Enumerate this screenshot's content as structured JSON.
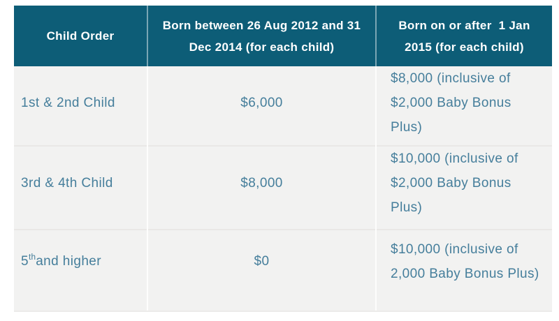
{
  "colors": {
    "header_background": "#0d5d77",
    "header_text": "#ffffff",
    "body_background": "#f2f2f1",
    "body_text": "#457e9b",
    "column_divider_body": "#fdfdfc",
    "row_divider": "#e9e8e6"
  },
  "table": {
    "headers": {
      "child_order": "Child Order",
      "born_2012_2014": "Born between 26 Aug 2012 and 31\nDec 2014 (for each child)",
      "born_2015": "Born on or after  1 Jan\n2015 (for each child)"
    },
    "rows": [
      {
        "child_order": "1st & 2nd Child",
        "amount_2012_2014": "$6,000",
        "amount_2015": "$8,000 (inclusive of\n$2,000 Baby Bonus Plus)"
      },
      {
        "child_order": "3rd & 4th Child",
        "amount_2012_2014": "$8,000",
        "amount_2015": "$10,000 (inclusive of\n$2,000 Baby Bonus Plus)"
      },
      {
        "child_order_parts": {
          "base": "5",
          "superscript": "th",
          "rest": " and higher"
        },
        "amount_2012_2014": "$0",
        "amount_2015": "$10,000 (inclusive of\n2,000 Baby Bonus Plus)"
      }
    ]
  }
}
